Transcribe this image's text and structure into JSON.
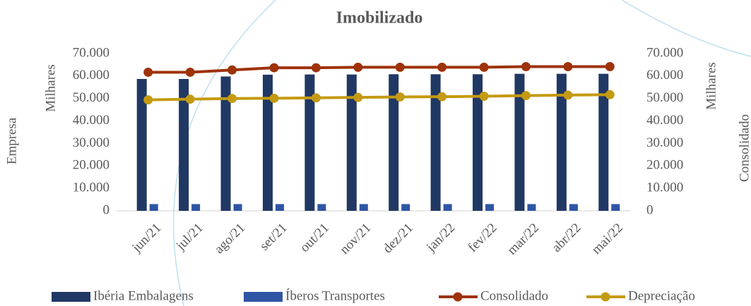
{
  "chart_data": {
    "type": "bar",
    "title": "Imobilizado",
    "ylabel": "Milhares",
    "y_outer_label": "Empresa",
    "y2label": "Milhares",
    "y2_outer_label": "Consolidado",
    "categories": [
      "jun/21",
      "jul/21",
      "ago/21",
      "set/21",
      "out/21",
      "nov/21",
      "dez/21",
      "jan/22",
      "fev/22",
      "mar/22",
      "abr/22",
      "mai/22"
    ],
    "series": [
      {
        "name": "Ibéria Embalagens",
        "type": "bar",
        "color": "#203864",
        "values": [
          58700,
          58700,
          59800,
          60600,
          60700,
          60700,
          60800,
          60800,
          60800,
          61000,
          61000,
          61000
        ]
      },
      {
        "name": "Íberos Transportes",
        "type": "bar",
        "color": "#2f55a4",
        "values": [
          3000,
          3000,
          3000,
          3000,
          3000,
          3000,
          3000,
          3000,
          3000,
          3000,
          3000,
          3000
        ]
      },
      {
        "name": "Consolidado",
        "type": "line",
        "axis": "y2",
        "color": "#9e3208",
        "values": [
          61700,
          61700,
          62700,
          63700,
          63700,
          63900,
          63900,
          63900,
          63900,
          64200,
          64200,
          64200
        ]
      },
      {
        "name": "Depreciação",
        "type": "line",
        "axis": "y2",
        "color": "#c49a12",
        "values": [
          49400,
          49700,
          50000,
          50100,
          50300,
          50500,
          50700,
          50800,
          51000,
          51300,
          51500,
          51700
        ]
      }
    ],
    "ylim": [
      0,
      70000
    ],
    "yticks": [
      0,
      {
        "value": 10000,
        "label": "10.000"
      },
      {
        "value": 20000,
        "label": "20.000"
      },
      {
        "value": 30000,
        "label": "30.000"
      },
      {
        "value": 40000,
        "label": "40.000"
      },
      {
        "value": 50000,
        "label": "50.000"
      },
      {
        "value": 60000,
        "label": "60.000"
      },
      {
        "value": 70000,
        "label": "70.000"
      }
    ],
    "y2lim": [
      0,
      70000
    ],
    "y2ticks": [
      0,
      {
        "value": 10000,
        "label": "10.000"
      },
      {
        "value": 20000,
        "label": "20.000"
      },
      {
        "value": 30000,
        "label": "30.000"
      },
      {
        "value": 40000,
        "label": "40.000"
      },
      {
        "value": 50000,
        "label": "50.000"
      },
      {
        "value": 60000,
        "label": "60.000"
      },
      {
        "value": 70000,
        "label": "70.000"
      }
    ],
    "grid": false,
    "legend": "bottom"
  }
}
